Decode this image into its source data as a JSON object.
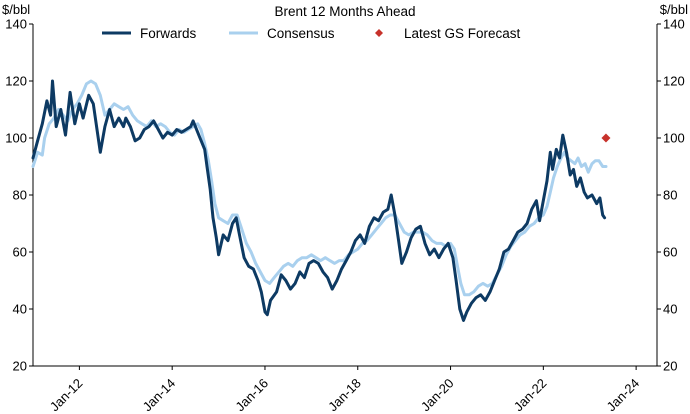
{
  "chart_data": {
    "type": "line",
    "title": "Brent 12 Months Ahead",
    "ylabel_left": "$/bbl",
    "ylabel_right": "$/bbl",
    "ylim": [
      20,
      140
    ],
    "yticks": [
      20,
      40,
      60,
      80,
      100,
      120,
      140
    ],
    "xlim": [
      2011.0,
      2024.45
    ],
    "xticks": [
      {
        "label": "Jan-12",
        "value": 2012
      },
      {
        "label": "Jan-14",
        "value": 2014
      },
      {
        "label": "Jan-16",
        "value": 2016
      },
      {
        "label": "Jan-18",
        "value": 2018
      },
      {
        "label": "Jan-20",
        "value": 2020
      },
      {
        "label": "Jan-22",
        "value": 2022
      },
      {
        "label": "Jan-24",
        "value": 2024
      }
    ],
    "grid": false,
    "legend_position": "top",
    "series": [
      {
        "name": "Forwards",
        "color": "#0d3a63",
        "points": [
          [
            2011.0,
            93
          ],
          [
            2011.1,
            99
          ],
          [
            2011.2,
            105
          ],
          [
            2011.3,
            113
          ],
          [
            2011.38,
            108
          ],
          [
            2011.42,
            120
          ],
          [
            2011.5,
            104
          ],
          [
            2011.6,
            110
          ],
          [
            2011.7,
            101
          ],
          [
            2011.8,
            116
          ],
          [
            2011.9,
            105
          ],
          [
            2012.0,
            112
          ],
          [
            2012.08,
            107
          ],
          [
            2012.2,
            115
          ],
          [
            2012.3,
            112
          ],
          [
            2012.38,
            103
          ],
          [
            2012.45,
            95
          ],
          [
            2012.55,
            104
          ],
          [
            2012.65,
            110
          ],
          [
            2012.75,
            104
          ],
          [
            2012.85,
            107
          ],
          [
            2012.95,
            104
          ],
          [
            2013.0,
            107
          ],
          [
            2013.1,
            104
          ],
          [
            2013.2,
            99
          ],
          [
            2013.3,
            100
          ],
          [
            2013.4,
            103
          ],
          [
            2013.5,
            104
          ],
          [
            2013.6,
            106
          ],
          [
            2013.7,
            103
          ],
          [
            2013.8,
            100
          ],
          [
            2013.9,
            102
          ],
          [
            2014.0,
            101
          ],
          [
            2014.1,
            103
          ],
          [
            2014.2,
            102
          ],
          [
            2014.3,
            103
          ],
          [
            2014.4,
            104
          ],
          [
            2014.45,
            106
          ],
          [
            2014.5,
            104
          ],
          [
            2014.6,
            100
          ],
          [
            2014.7,
            96
          ],
          [
            2014.75,
            90
          ],
          [
            2014.82,
            82
          ],
          [
            2014.88,
            72
          ],
          [
            2014.95,
            65
          ],
          [
            2015.0,
            59
          ],
          [
            2015.1,
            66
          ],
          [
            2015.2,
            64
          ],
          [
            2015.3,
            70
          ],
          [
            2015.38,
            72
          ],
          [
            2015.45,
            66
          ],
          [
            2015.55,
            58
          ],
          [
            2015.65,
            55
          ],
          [
            2015.75,
            54
          ],
          [
            2015.85,
            50
          ],
          [
            2015.92,
            46
          ],
          [
            2016.0,
            39
          ],
          [
            2016.05,
            38
          ],
          [
            2016.12,
            43
          ],
          [
            2016.25,
            46
          ],
          [
            2016.35,
            52
          ],
          [
            2016.45,
            50
          ],
          [
            2016.55,
            47
          ],
          [
            2016.65,
            49
          ],
          [
            2016.75,
            53
          ],
          [
            2016.85,
            51
          ],
          [
            2016.95,
            56
          ],
          [
            2017.05,
            57
          ],
          [
            2017.15,
            56
          ],
          [
            2017.25,
            53
          ],
          [
            2017.35,
            51
          ],
          [
            2017.45,
            47
          ],
          [
            2017.55,
            50
          ],
          [
            2017.65,
            54
          ],
          [
            2017.75,
            57
          ],
          [
            2017.85,
            60
          ],
          [
            2017.95,
            64
          ],
          [
            2018.05,
            66
          ],
          [
            2018.15,
            63
          ],
          [
            2018.25,
            69
          ],
          [
            2018.35,
            72
          ],
          [
            2018.45,
            71
          ],
          [
            2018.55,
            74
          ],
          [
            2018.65,
            75
          ],
          [
            2018.72,
            80
          ],
          [
            2018.8,
            73
          ],
          [
            2018.88,
            64
          ],
          [
            2018.95,
            56
          ],
          [
            2019.05,
            60
          ],
          [
            2019.15,
            65
          ],
          [
            2019.25,
            68
          ],
          [
            2019.35,
            69
          ],
          [
            2019.45,
            63
          ],
          [
            2019.55,
            59
          ],
          [
            2019.65,
            61
          ],
          [
            2019.75,
            58
          ],
          [
            2019.85,
            61
          ],
          [
            2019.95,
            63
          ],
          [
            2020.05,
            58
          ],
          [
            2020.12,
            50
          ],
          [
            2020.2,
            40
          ],
          [
            2020.28,
            36
          ],
          [
            2020.35,
            39
          ],
          [
            2020.45,
            42
          ],
          [
            2020.55,
            44
          ],
          [
            2020.65,
            45
          ],
          [
            2020.75,
            43
          ],
          [
            2020.85,
            46
          ],
          [
            2020.95,
            50
          ],
          [
            2021.05,
            54
          ],
          [
            2021.15,
            60
          ],
          [
            2021.25,
            61
          ],
          [
            2021.35,
            64
          ],
          [
            2021.45,
            67
          ],
          [
            2021.55,
            68
          ],
          [
            2021.65,
            70
          ],
          [
            2021.75,
            75
          ],
          [
            2021.85,
            78
          ],
          [
            2021.92,
            71
          ],
          [
            2022.0,
            78
          ],
          [
            2022.08,
            85
          ],
          [
            2022.15,
            95
          ],
          [
            2022.2,
            89
          ],
          [
            2022.28,
            96
          ],
          [
            2022.35,
            93
          ],
          [
            2022.42,
            101
          ],
          [
            2022.5,
            95
          ],
          [
            2022.58,
            87
          ],
          [
            2022.65,
            89
          ],
          [
            2022.72,
            83
          ],
          [
            2022.8,
            86
          ],
          [
            2022.88,
            81
          ],
          [
            2022.95,
            79
          ],
          [
            2023.05,
            80
          ],
          [
            2023.15,
            77
          ],
          [
            2023.22,
            79
          ],
          [
            2023.28,
            73
          ],
          [
            2023.32,
            72
          ]
        ]
      },
      {
        "name": "Consensus",
        "color": "#a9d0ee",
        "points": [
          [
            2011.0,
            90
          ],
          [
            2011.1,
            95
          ],
          [
            2011.2,
            94
          ],
          [
            2011.25,
            100
          ],
          [
            2011.35,
            105
          ],
          [
            2011.45,
            107
          ],
          [
            2011.55,
            110
          ],
          [
            2011.65,
            108
          ],
          [
            2011.75,
            106
          ],
          [
            2011.85,
            110
          ],
          [
            2011.95,
            112
          ],
          [
            2012.05,
            115
          ],
          [
            2012.15,
            119
          ],
          [
            2012.25,
            120
          ],
          [
            2012.35,
            119
          ],
          [
            2012.45,
            115
          ],
          [
            2012.55,
            108
          ],
          [
            2012.65,
            110
          ],
          [
            2012.75,
            112
          ],
          [
            2012.85,
            111
          ],
          [
            2012.95,
            110
          ],
          [
            2013.05,
            111
          ],
          [
            2013.15,
            108
          ],
          [
            2013.25,
            106
          ],
          [
            2013.35,
            105
          ],
          [
            2013.45,
            104
          ],
          [
            2013.55,
            106
          ],
          [
            2013.65,
            104
          ],
          [
            2013.75,
            105
          ],
          [
            2013.85,
            104
          ],
          [
            2013.95,
            102
          ],
          [
            2014.05,
            101
          ],
          [
            2014.15,
            103
          ],
          [
            2014.25,
            102
          ],
          [
            2014.35,
            103
          ],
          [
            2014.45,
            104
          ],
          [
            2014.55,
            105
          ],
          [
            2014.62,
            103
          ],
          [
            2014.7,
            98
          ],
          [
            2014.78,
            92
          ],
          [
            2014.85,
            85
          ],
          [
            2014.92,
            77
          ],
          [
            2015.0,
            72
          ],
          [
            2015.1,
            71
          ],
          [
            2015.2,
            70
          ],
          [
            2015.3,
            73
          ],
          [
            2015.4,
            73
          ],
          [
            2015.5,
            68
          ],
          [
            2015.6,
            63
          ],
          [
            2015.7,
            60
          ],
          [
            2015.8,
            56
          ],
          [
            2015.9,
            53
          ],
          [
            2016.0,
            50
          ],
          [
            2016.1,
            49
          ],
          [
            2016.2,
            51
          ],
          [
            2016.3,
            53
          ],
          [
            2016.4,
            55
          ],
          [
            2016.5,
            56
          ],
          [
            2016.6,
            55
          ],
          [
            2016.7,
            57
          ],
          [
            2016.8,
            58
          ],
          [
            2016.9,
            58
          ],
          [
            2017.0,
            59
          ],
          [
            2017.1,
            58
          ],
          [
            2017.2,
            57
          ],
          [
            2017.3,
            58
          ],
          [
            2017.4,
            57
          ],
          [
            2017.5,
            56
          ],
          [
            2017.6,
            57
          ],
          [
            2017.7,
            57
          ],
          [
            2017.8,
            59
          ],
          [
            2017.9,
            60
          ],
          [
            2018.0,
            61
          ],
          [
            2018.1,
            63
          ],
          [
            2018.2,
            64
          ],
          [
            2018.3,
            66
          ],
          [
            2018.4,
            68
          ],
          [
            2018.5,
            70
          ],
          [
            2018.6,
            72
          ],
          [
            2018.7,
            73
          ],
          [
            2018.8,
            73
          ],
          [
            2018.9,
            70
          ],
          [
            2019.0,
            67
          ],
          [
            2019.1,
            66
          ],
          [
            2019.2,
            67
          ],
          [
            2019.3,
            67
          ],
          [
            2019.4,
            67
          ],
          [
            2019.5,
            66
          ],
          [
            2019.6,
            64
          ],
          [
            2019.7,
            63
          ],
          [
            2019.8,
            63
          ],
          [
            2019.9,
            62
          ],
          [
            2020.0,
            63
          ],
          [
            2020.08,
            61
          ],
          [
            2020.15,
            55
          ],
          [
            2020.22,
            49
          ],
          [
            2020.3,
            45
          ],
          [
            2020.4,
            45
          ],
          [
            2020.5,
            46
          ],
          [
            2020.6,
            48
          ],
          [
            2020.7,
            49
          ],
          [
            2020.8,
            48
          ],
          [
            2020.9,
            49
          ],
          [
            2021.0,
            52
          ],
          [
            2021.1,
            55
          ],
          [
            2021.2,
            59
          ],
          [
            2021.3,
            62
          ],
          [
            2021.4,
            64
          ],
          [
            2021.5,
            66
          ],
          [
            2021.6,
            67
          ],
          [
            2021.7,
            69
          ],
          [
            2021.8,
            70
          ],
          [
            2021.9,
            72
          ],
          [
            2022.0,
            73
          ],
          [
            2022.08,
            76
          ],
          [
            2022.15,
            81
          ],
          [
            2022.22,
            86
          ],
          [
            2022.3,
            90
          ],
          [
            2022.38,
            93
          ],
          [
            2022.45,
            95
          ],
          [
            2022.52,
            93
          ],
          [
            2022.6,
            92
          ],
          [
            2022.68,
            91
          ],
          [
            2022.75,
            93
          ],
          [
            2022.82,
            90
          ],
          [
            2022.9,
            91
          ],
          [
            2022.97,
            88
          ],
          [
            2023.05,
            91
          ],
          [
            2023.12,
            92
          ],
          [
            2023.2,
            92
          ],
          [
            2023.28,
            90
          ],
          [
            2023.35,
            90
          ]
        ]
      }
    ],
    "markers": [
      {
        "name": "Latest GS Forecast",
        "color": "#c7322b",
        "x": 2023.35,
        "y": 100
      }
    ]
  }
}
